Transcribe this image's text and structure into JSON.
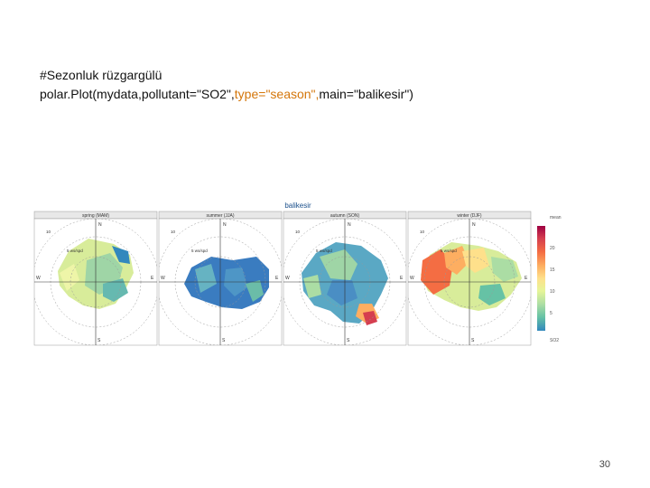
{
  "code": {
    "comment": "#Sezonluk rüzgargülü",
    "call_prefix": "polar.Plot(mydata,pollutant=\"SO2\",",
    "type_keyword": "type=",
    "type_value": "\"season\",",
    "call_suffix": "main=\"balikesir\")"
  },
  "figure": {
    "title": "balikesir",
    "panels": [
      {
        "label": "spring (MAM)"
      },
      {
        "label": "summer (JJA)"
      },
      {
        "label": "autumn (SON)"
      },
      {
        "label": "winter (DJF)"
      }
    ],
    "compass": {
      "north": "N",
      "south": "S",
      "east": "E",
      "west": "W"
    },
    "ring_labels": [
      "10",
      "5",
      "5 ws/spd"
    ],
    "colorbar": {
      "title": "mean",
      "ticks": [
        "20",
        "15",
        "10",
        "5"
      ],
      "unit": "SO2",
      "colors": [
        "#9e0142",
        "#d53e4f",
        "#f46d43",
        "#fdae61",
        "#fee08b",
        "#e6f598",
        "#abdda4",
        "#66c2a5",
        "#3288bd",
        "#5e4fa2"
      ]
    }
  },
  "page_number": "30"
}
